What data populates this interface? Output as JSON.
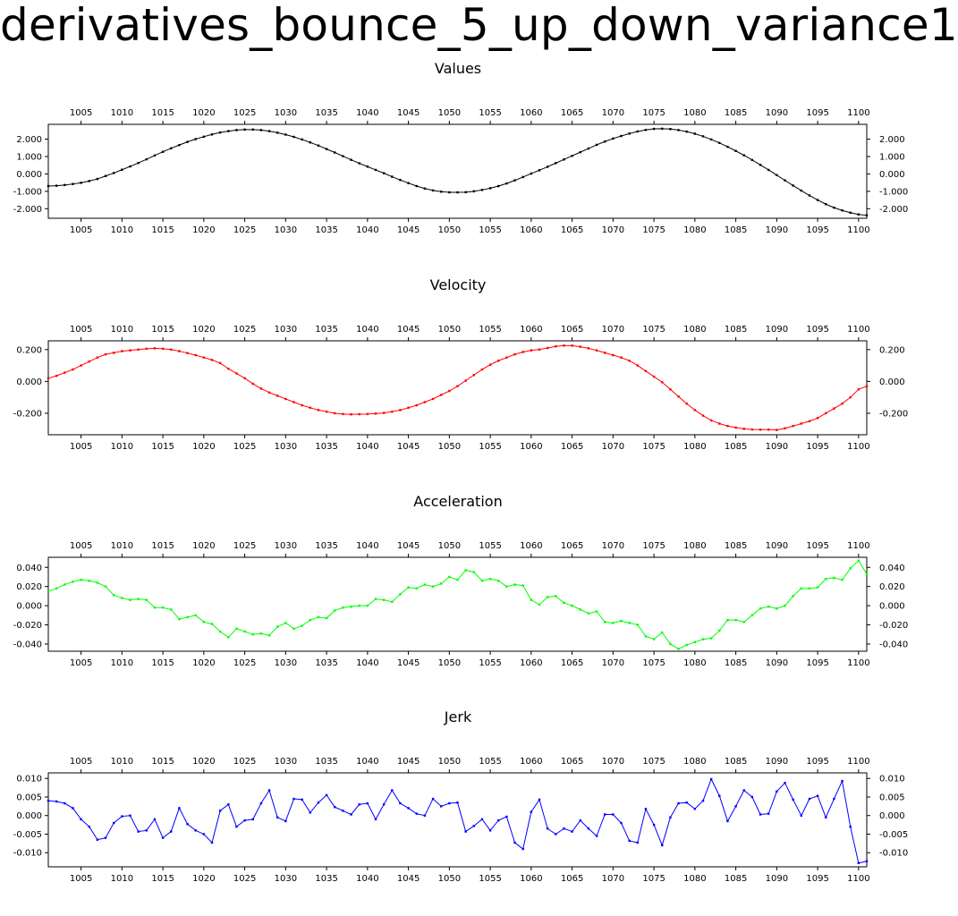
{
  "title": "derivatives_bounce_5_up_down_variance1",
  "panels": [
    {
      "title": "Values",
      "color": "#000000",
      "ylim": [
        -2.55,
        2.85
      ],
      "yticks": [
        2.0,
        1.0,
        0.0,
        -1.0,
        -2.0
      ],
      "ytick_labels": [
        "2.000",
        "1.000",
        "0.000",
        "-1.000",
        "-2.000"
      ]
    },
    {
      "title": "Velocity",
      "color": "#ff0000",
      "ylim": [
        -0.335,
        0.255
      ],
      "yticks": [
        0.2,
        0.0,
        -0.2
      ],
      "ytick_labels": [
        "0.200",
        "0.000",
        "-0.200"
      ]
    },
    {
      "title": "Acceleration",
      "color": "#00ff00",
      "ylim": [
        -0.0475,
        0.0505
      ],
      "yticks": [
        0.04,
        0.02,
        0.0,
        -0.02,
        -0.04
      ],
      "ytick_labels": [
        "0.040",
        "0.020",
        "0.000",
        "-0.020",
        "-0.040"
      ]
    },
    {
      "title": "Jerk",
      "color": "#0000ff",
      "ylim": [
        -0.0138,
        0.0115
      ],
      "yticks": [
        0.01,
        0.005,
        0.0,
        -0.005,
        -0.01
      ],
      "ytick_labels": [
        "0.010",
        "0.005",
        "0.000",
        "-0.005",
        "-0.010"
      ]
    }
  ],
  "chart_data": {
    "type": "line",
    "xlim": [
      1001,
      1101
    ],
    "xticks": [
      1005,
      1010,
      1015,
      1020,
      1025,
      1030,
      1035,
      1040,
      1045,
      1050,
      1055,
      1060,
      1065,
      1070,
      1075,
      1080,
      1085,
      1090,
      1095,
      1100
    ],
    "x_start": 1001,
    "x_end": 1101,
    "series": [
      {
        "name": "Values",
        "values": [
          -0.7,
          -0.68,
          -0.64,
          -0.58,
          -0.51,
          -0.41,
          -0.29,
          -0.12,
          0.05,
          0.24,
          0.43,
          0.63,
          0.84,
          1.06,
          1.27,
          1.47,
          1.66,
          1.84,
          2.0,
          2.14,
          2.27,
          2.38,
          2.46,
          2.52,
          2.55,
          2.55,
          2.52,
          2.46,
          2.37,
          2.26,
          2.13,
          1.98,
          1.81,
          1.63,
          1.43,
          1.23,
          1.02,
          0.81,
          0.61,
          0.42,
          0.23,
          0.04,
          -0.16,
          -0.35,
          -0.53,
          -0.7,
          -0.84,
          -0.95,
          -1.02,
          -1.06,
          -1.06,
          -1.05,
          -1.0,
          -0.92,
          -0.82,
          -0.7,
          -0.55,
          -0.37,
          -0.18,
          0.02,
          0.21,
          0.41,
          0.62,
          0.83,
          1.04,
          1.25,
          1.46,
          1.67,
          1.86,
          2.03,
          2.18,
          2.32,
          2.44,
          2.53,
          2.59,
          2.6,
          2.58,
          2.52,
          2.43,
          2.31,
          2.16,
          1.98,
          1.78,
          1.56,
          1.32,
          1.07,
          0.8,
          0.52,
          0.23,
          -0.07,
          -0.37,
          -0.67,
          -0.96,
          -1.24,
          -1.5,
          -1.74,
          -1.94,
          -2.1,
          -2.23,
          -2.33,
          -2.38
        ]
      },
      {
        "name": "Velocity",
        "values": [
          0.02,
          0.035,
          0.055,
          0.075,
          0.1,
          0.125,
          0.15,
          0.17,
          0.18,
          0.19,
          0.195,
          0.2,
          0.205,
          0.208,
          0.205,
          0.2,
          0.19,
          0.178,
          0.165,
          0.15,
          0.135,
          0.115,
          0.08,
          0.05,
          0.02,
          -0.015,
          -0.045,
          -0.07,
          -0.09,
          -0.11,
          -0.13,
          -0.15,
          -0.165,
          -0.18,
          -0.19,
          -0.2,
          -0.205,
          -0.207,
          -0.206,
          -0.205,
          -0.202,
          -0.198,
          -0.19,
          -0.18,
          -0.165,
          -0.15,
          -0.13,
          -0.11,
          -0.085,
          -0.06,
          -0.03,
          0.005,
          0.04,
          0.075,
          0.105,
          0.13,
          0.15,
          0.17,
          0.185,
          0.195,
          0.2,
          0.21,
          0.22,
          0.225,
          0.225,
          0.218,
          0.208,
          0.195,
          0.18,
          0.165,
          0.15,
          0.13,
          0.1,
          0.065,
          0.03,
          -0.005,
          -0.05,
          -0.095,
          -0.14,
          -0.18,
          -0.215,
          -0.245,
          -0.265,
          -0.28,
          -0.29,
          -0.298,
          -0.302,
          -0.303,
          -0.303,
          -0.305,
          -0.295,
          -0.28,
          -0.265,
          -0.25,
          -0.23,
          -0.2,
          -0.17,
          -0.14,
          -0.1,
          -0.05,
          -0.03
        ]
      },
      {
        "name": "Acceleration",
        "values": [
          0.015,
          0.018,
          0.022,
          0.025,
          0.027,
          0.026,
          0.024,
          0.02,
          0.011,
          0.008,
          0.006,
          0.007,
          0.006,
          -0.002,
          -0.002,
          -0.004,
          -0.014,
          -0.012,
          -0.01,
          -0.017,
          -0.019,
          -0.027,
          -0.033,
          -0.024,
          -0.027,
          -0.03,
          -0.029,
          -0.031,
          -0.022,
          -0.018,
          -0.024,
          -0.021,
          -0.015,
          -0.012,
          -0.013,
          -0.005,
          -0.002,
          -0.001,
          0.0,
          0.0,
          0.007,
          0.006,
          0.004,
          0.012,
          0.019,
          0.018,
          0.022,
          0.02,
          0.023,
          0.03,
          0.027,
          0.037,
          0.035,
          0.026,
          0.028,
          0.026,
          0.02,
          0.022,
          0.021,
          0.006,
          0.001,
          0.009,
          0.01,
          0.003,
          0.0,
          -0.004,
          -0.008,
          -0.006,
          -0.017,
          -0.018,
          -0.016,
          -0.018,
          -0.02,
          -0.032,
          -0.035,
          -0.028,
          -0.04,
          -0.045,
          -0.041,
          -0.038,
          -0.035,
          -0.034,
          -0.026,
          -0.015,
          -0.015,
          -0.017,
          -0.01,
          -0.003,
          -0.001,
          -0.003,
          0.0,
          0.01,
          0.018,
          0.018,
          0.019,
          0.028,
          0.029,
          0.027,
          0.039,
          0.047,
          0.033
        ]
      },
      {
        "name": "Jerk",
        "values": [
          0.004,
          0.0038,
          0.0033,
          0.002,
          -0.001,
          -0.003,
          -0.0065,
          -0.006,
          -0.002,
          -0.0002,
          0.0,
          -0.0043,
          -0.004,
          -0.001,
          -0.006,
          -0.0043,
          0.002,
          -0.0023,
          -0.004,
          -0.005,
          -0.0073,
          0.0013,
          0.003,
          -0.003,
          -0.0013,
          -0.001,
          0.0033,
          0.0068,
          -0.0005,
          -0.0015,
          0.0045,
          0.0043,
          0.0008,
          0.0035,
          0.0055,
          0.0023,
          0.0013,
          0.0003,
          0.003,
          0.0033,
          -0.001,
          0.003,
          0.0068,
          0.0033,
          0.002,
          0.0005,
          0.0,
          0.0045,
          0.0025,
          0.0033,
          0.0035,
          -0.0043,
          -0.0028,
          -0.001,
          -0.004,
          -0.0013,
          -0.0003,
          -0.0073,
          -0.009,
          0.001,
          0.0043,
          -0.0035,
          -0.005,
          -0.0035,
          -0.0043,
          -0.0013,
          -0.0035,
          -0.0055,
          0.0003,
          0.0003,
          -0.002,
          -0.0068,
          -0.0073,
          0.0018,
          -0.0025,
          -0.008,
          -0.0005,
          0.0033,
          0.0035,
          0.0018,
          0.004,
          0.0098,
          0.0053,
          -0.0015,
          0.0025,
          0.0068,
          0.005,
          0.0003,
          0.0005,
          0.0065,
          0.0088,
          0.0043,
          0.0,
          0.0045,
          0.0053,
          -0.0005,
          0.0045,
          0.0093,
          -0.003,
          -0.0128,
          -0.0123
        ]
      }
    ]
  }
}
